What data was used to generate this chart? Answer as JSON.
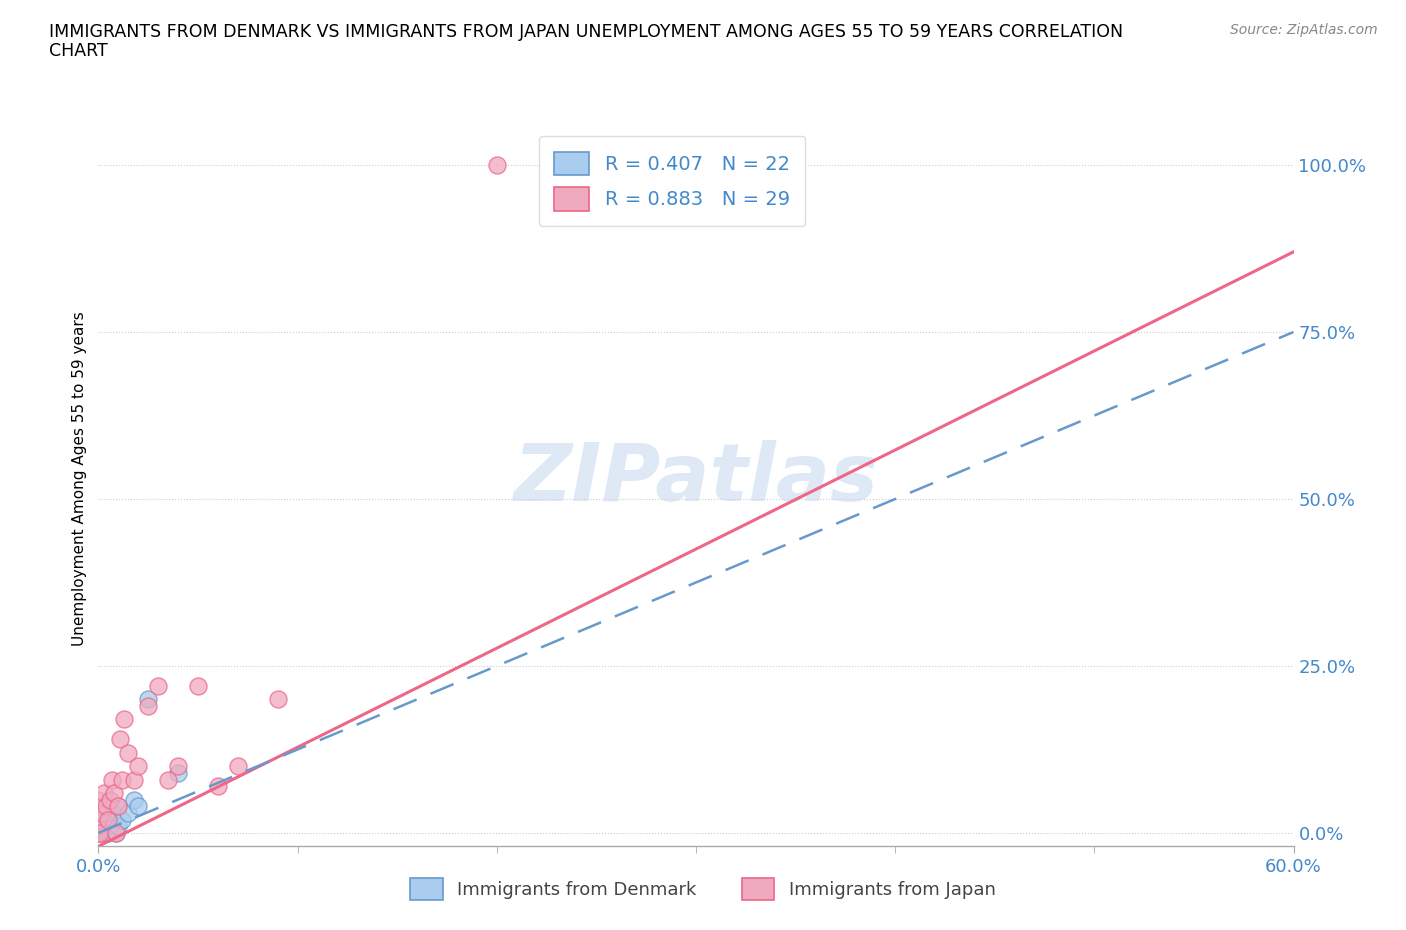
{
  "title_line1": "IMMIGRANTS FROM DENMARK VS IMMIGRANTS FROM JAPAN UNEMPLOYMENT AMONG AGES 55 TO 59 YEARS CORRELATION",
  "title_line2": "CHART",
  "source": "Source: ZipAtlas.com",
  "xlim": [
    0.0,
    0.6
  ],
  "ylim": [
    -0.02,
    1.08
  ],
  "watermark": "ZIPatlas",
  "legend_r1": "R = 0.407   N = 22",
  "legend_r2": "R = 0.883   N = 29",
  "color_denmark": "#aaccee",
  "color_japan": "#f0aabf",
  "edge_denmark": "#6699cc",
  "edge_japan": "#ee6688",
  "denmark_x": [
    0.0,
    0.0,
    0.0,
    0.0,
    0.002,
    0.002,
    0.003,
    0.004,
    0.005,
    0.005,
    0.006,
    0.007,
    0.008,
    0.009,
    0.01,
    0.01,
    0.012,
    0.015,
    0.018,
    0.02,
    0.025,
    0.04
  ],
  "denmark_y": [
    0.0,
    0.005,
    0.01,
    0.015,
    0.0,
    0.01,
    0.02,
    0.0,
    0.0,
    0.02,
    0.01,
    0.03,
    0.02,
    0.0,
    0.01,
    0.04,
    0.02,
    0.03,
    0.05,
    0.04,
    0.2,
    0.09
  ],
  "japan_x": [
    0.0,
    0.0,
    0.0,
    0.0,
    0.001,
    0.002,
    0.003,
    0.004,
    0.005,
    0.006,
    0.007,
    0.008,
    0.009,
    0.01,
    0.011,
    0.012,
    0.013,
    0.015,
    0.018,
    0.02,
    0.025,
    0.03,
    0.035,
    0.04,
    0.05,
    0.06,
    0.07,
    0.09,
    0.2
  ],
  "japan_y": [
    0.0,
    0.01,
    0.02,
    0.05,
    0.0,
    0.03,
    0.06,
    0.04,
    0.02,
    0.05,
    0.08,
    0.06,
    0.0,
    0.04,
    0.14,
    0.08,
    0.17,
    0.12,
    0.08,
    0.1,
    0.19,
    0.22,
    0.08,
    0.1,
    0.22,
    0.07,
    0.1,
    0.2,
    1.0
  ],
  "denmark_trend": [
    0.0,
    0.0,
    0.6,
    0.75
  ],
  "japan_trend": [
    0.0,
    -0.02,
    0.6,
    0.87
  ],
  "xtick_positions": [
    0.0,
    0.6
  ],
  "xtick_labels": [
    "0.0%",
    "60.0%"
  ],
  "ytick_positions": [
    0.0,
    0.25,
    0.5,
    0.75,
    1.0
  ],
  "ytick_labels": [
    "0.0%",
    "25.0%",
    "50.0%",
    "75.0%",
    "100.0%"
  ]
}
